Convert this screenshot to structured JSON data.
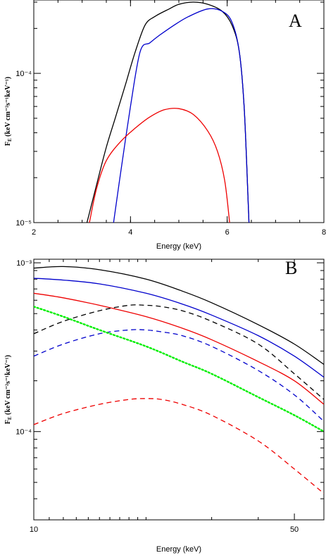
{
  "chart_data": [
    {
      "type": "line",
      "panel_label": "A",
      "xlabel": "Energy (keV)",
      "ylabel_main": "F",
      "ylabel_sub": "E",
      "ylabel_rest": " (keV cm⁻²s⁻¹keV⁻¹)",
      "xscale": "linear",
      "yscale": "log",
      "xlim": [
        2,
        8
      ],
      "ylim": [
        1e-05,
        0.00031
      ],
      "xticks": [
        2,
        4,
        6,
        8
      ],
      "xtick_labels": [
        "2",
        "4",
        "6",
        "8"
      ],
      "yticks": [
        1e-05,
        0.0001
      ],
      "ytick_labels": [
        "10⁻⁵",
        "10⁻⁴"
      ],
      "grid": false,
      "legend": "none",
      "series": [
        {
          "color": "#000000",
          "dash": "solid",
          "x": [
            3.1,
            3.3,
            3.5,
            3.7,
            3.9,
            4.1,
            4.3,
            4.5,
            4.8,
            5.0,
            5.3,
            5.6,
            5.9,
            6.1,
            6.25,
            6.35,
            6.42,
            6.45
          ],
          "y": [
            1e-05,
            1.8e-05,
            3.2e-05,
            5.2e-05,
            8.5e-05,
            0.00014,
            0.00021,
            0.00024,
            0.00027,
            0.00029,
            0.0003,
            0.00029,
            0.00026,
            0.00021,
            0.00014,
            6e-05,
            1.8e-05,
            1e-05
          ]
        },
        {
          "color": "#0000cc",
          "dash": "solid",
          "x": [
            3.65,
            3.8,
            4.0,
            4.2,
            4.4,
            4.6,
            4.9,
            5.2,
            5.6,
            5.9,
            6.1,
            6.25,
            6.35,
            6.42,
            6.45
          ],
          "y": [
            1e-05,
            2.2e-05,
            6e-05,
            0.00014,
            0.00016,
            0.00018,
            0.00021,
            0.00024,
            0.00027,
            0.00026,
            0.00022,
            0.00014,
            6e-05,
            1.8e-05,
            1e-05
          ]
        },
        {
          "color": "#ee0000",
          "dash": "solid",
          "x": [
            3.15,
            3.3,
            3.5,
            3.8,
            4.1,
            4.4,
            4.7,
            5.0,
            5.3,
            5.6,
            5.8,
            5.95,
            6.05
          ],
          "y": [
            1e-05,
            1.7e-05,
            2.6e-05,
            3.5e-05,
            4.3e-05,
            5.1e-05,
            5.7e-05,
            5.8e-05,
            5.3e-05,
            4.1e-05,
            3e-05,
            1.9e-05,
            1e-05
          ]
        }
      ]
    },
    {
      "type": "line",
      "panel_label": "B",
      "xlabel": "Energy (keV)",
      "ylabel_main": "F",
      "ylabel_sub": "E",
      "ylabel_rest": " (keV cm⁻²s⁻¹keV⁻¹)",
      "xscale": "log",
      "yscale": "log",
      "xlim": [
        10,
        60
      ],
      "ylim": [
        3e-05,
        0.00105
      ],
      "xticks": [
        10,
        50
      ],
      "xtick_labels": [
        "10",
        "50"
      ],
      "yticks": [
        0.0001,
        0.001
      ],
      "ytick_labels": [
        "10⁻⁴",
        "10⁻³"
      ],
      "grid": false,
      "legend": "none",
      "series": [
        {
          "color": "#000000",
          "dash": "solid",
          "x": [
            10,
            12,
            15,
            20,
            25,
            30,
            40,
            50,
            60
          ],
          "y": [
            0.00093,
            0.00095,
            0.00091,
            0.0008,
            0.00068,
            0.00058,
            0.00043,
            0.00033,
            0.00025
          ]
        },
        {
          "color": "#0000cc",
          "dash": "solid",
          "x": [
            10,
            12,
            15,
            20,
            25,
            30,
            40,
            50,
            60
          ],
          "y": [
            0.00081,
            0.00079,
            0.00075,
            0.00066,
            0.00057,
            0.00049,
            0.00037,
            0.00028,
            0.00021
          ]
        },
        {
          "color": "#ee0000",
          "dash": "solid",
          "x": [
            10,
            12,
            15,
            20,
            25,
            30,
            40,
            50,
            60
          ],
          "y": [
            0.00066,
            0.00062,
            0.00056,
            0.00048,
            0.00041,
            0.00035,
            0.00026,
            0.0002,
            0.000145
          ]
        },
        {
          "color": "#000000",
          "dash": "dashed",
          "x": [
            10,
            12,
            15,
            18,
            20,
            22,
            25,
            30,
            40,
            50,
            60
          ],
          "y": [
            0.00038,
            0.00045,
            0.00052,
            0.00056,
            0.00056,
            0.00055,
            0.00052,
            0.00045,
            0.00033,
            0.00022,
            0.000155
          ]
        },
        {
          "color": "#0000cc",
          "dash": "dashed",
          "x": [
            10,
            12,
            15,
            18,
            20,
            22,
            25,
            30,
            40,
            50,
            60
          ],
          "y": [
            0.00028,
            0.00033,
            0.00038,
            0.0004,
            0.0004,
            0.00039,
            0.00037,
            0.00032,
            0.00023,
            0.000165,
            0.000115
          ]
        },
        {
          "color": "#ee0000",
          "dash": "dashed",
          "x": [
            10,
            12,
            15,
            18,
            20,
            22,
            25,
            30,
            40,
            50,
            60
          ],
          "y": [
            0.00011,
            0.000128,
            0.000145,
            0.000155,
            0.000157,
            0.000155,
            0.000145,
            0.000125,
            8.8e-05,
            6e-05,
            4.3e-05
          ]
        },
        {
          "color": "#00ee00",
          "dash": "dotted",
          "x": [
            10,
            12,
            15,
            20,
            25,
            30,
            40,
            50,
            60
          ],
          "y": [
            0.00055,
            0.00048,
            0.0004,
            0.00032,
            0.00026,
            0.00022,
            0.00016,
            0.000125,
            0.0001
          ]
        }
      ]
    }
  ]
}
